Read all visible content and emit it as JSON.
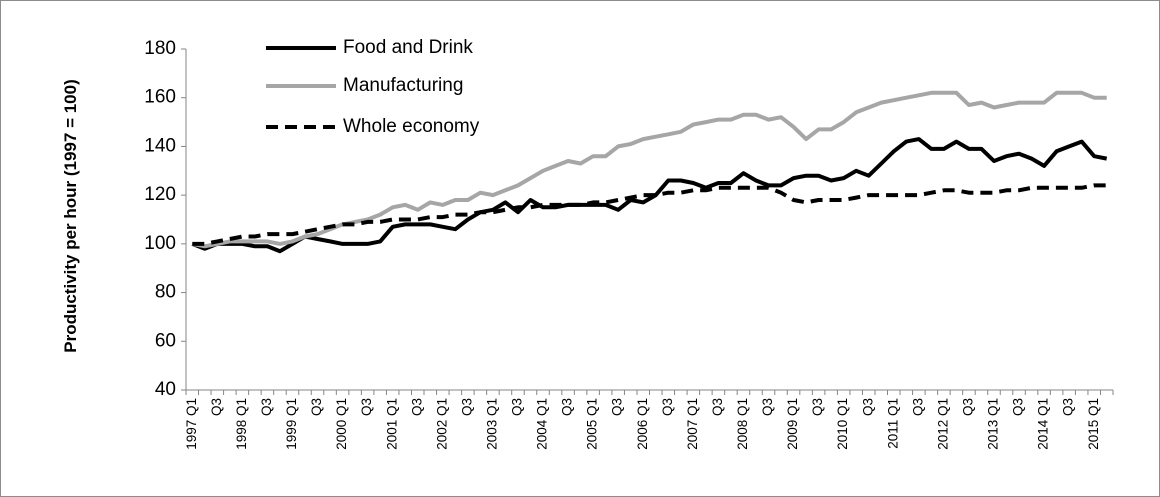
{
  "chart_data": {
    "type": "line",
    "y_label": "Productivity per hour (1997 = 100)",
    "categories": [
      "1997 Q1",
      null,
      "Q3",
      null,
      "1998 Q1",
      null,
      "Q3",
      null,
      "1999 Q1",
      null,
      "Q3",
      null,
      "2000 Q1",
      null,
      "Q3",
      null,
      "2001 Q1",
      null,
      "Q3",
      null,
      "2002 Q1",
      null,
      "Q3",
      null,
      "2003 Q1",
      null,
      "Q3",
      null,
      "2004 Q1",
      null,
      "Q3",
      null,
      "2005 Q1",
      null,
      "Q3",
      null,
      "2006 Q1",
      null,
      "Q3",
      null,
      "2007 Q1",
      null,
      "Q3",
      null,
      "2008 Q1",
      null,
      "Q3",
      null,
      "2009 Q1",
      null,
      "Q3",
      null,
      "2010 Q1",
      null,
      "Q3",
      null,
      "2011 Q1",
      null,
      "Q3",
      null,
      "2012 Q1",
      null,
      "Q3",
      null,
      "2013 Q1",
      null,
      "Q3",
      null,
      "2014 Q1",
      null,
      "Q3",
      null,
      "2015 Q1",
      null
    ],
    "series": [
      {
        "name": "Food and Drink",
        "color": "#000000",
        "style": "solid",
        "values": [
          100,
          98,
          100,
          100,
          100,
          99,
          99,
          97,
          100,
          103,
          102,
          101,
          100,
          100,
          100,
          101,
          107,
          108,
          108,
          108,
          107,
          106,
          110,
          113,
          114,
          117,
          113,
          118,
          115,
          115,
          116,
          116,
          116,
          116,
          114,
          118,
          117,
          120,
          126,
          126,
          125,
          123,
          125,
          125,
          129,
          126,
          124,
          124,
          127,
          128,
          128,
          126,
          127,
          130,
          128,
          133,
          138,
          142,
          143,
          139,
          139,
          142,
          139,
          139,
          134,
          136,
          137,
          135,
          132,
          138,
          140,
          142,
          136,
          135
        ]
      },
      {
        "name": "Manufacturing",
        "color": "#a6a6a6",
        "style": "solid",
        "values": [
          100,
          99,
          100,
          101,
          101,
          101,
          101,
          100,
          101,
          103,
          104,
          106,
          108,
          109,
          110,
          112,
          115,
          116,
          114,
          117,
          116,
          118,
          118,
          121,
          120,
          122,
          124,
          127,
          130,
          132,
          134,
          133,
          136,
          136,
          140,
          141,
          143,
          144,
          145,
          146,
          149,
          150,
          151,
          151,
          153,
          153,
          151,
          152,
          148,
          143,
          147,
          147,
          150,
          154,
          156,
          158,
          159,
          160,
          161,
          162,
          162,
          162,
          157,
          158,
          156,
          157,
          158,
          158,
          158,
          162,
          162,
          162,
          160,
          160
        ]
      },
      {
        "name": "Whole economy",
        "color": "#000000",
        "style": "dashed",
        "values": [
          100,
          100,
          101,
          102,
          103,
          103,
          104,
          104,
          104,
          105,
          106,
          107,
          108,
          108,
          109,
          109,
          110,
          110,
          110,
          111,
          111,
          112,
          112,
          113,
          113,
          114,
          115,
          115,
          116,
          116,
          116,
          116,
          117,
          117,
          118,
          119,
          120,
          120,
          121,
          121,
          122,
          122,
          123,
          123,
          123,
          123,
          123,
          121,
          118,
          117,
          118,
          118,
          118,
          119,
          120,
          120,
          120,
          120,
          120,
          121,
          122,
          122,
          121,
          121,
          121,
          122,
          122,
          123,
          123,
          123,
          123,
          123,
          124,
          124
        ]
      }
    ],
    "ylim": [
      40,
      180
    ],
    "yticks": [
      40,
      60,
      80,
      100,
      120,
      140,
      160,
      180
    ],
    "legend": "upper left"
  }
}
